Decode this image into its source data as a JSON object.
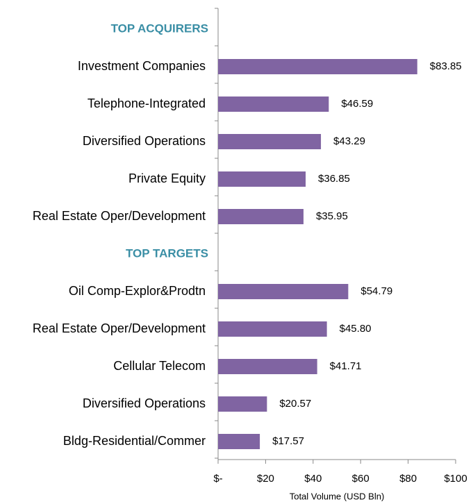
{
  "chart_data": {
    "type": "bar",
    "orientation": "horizontal",
    "color": "#8064a2",
    "x_label": "Total Volume (USD Bln)",
    "groups": [
      {
        "name": "TOP ACQUIRERS",
        "categories": [
          "Investment Companies",
          "Telephone-Integrated",
          "Diversified Operations",
          "Private Equity",
          "Real Estate Oper/Development"
        ],
        "values": [
          83.85,
          46.59,
          43.29,
          36.85,
          35.95
        ],
        "value_labels": [
          "$83.85",
          "$46.59",
          "$43.29",
          "$36.85",
          "$35.95"
        ]
      },
      {
        "name": "TOP TARGETS",
        "categories": [
          "Oil Comp-Explor&Prodtn",
          "Real Estate Oper/Development",
          "Cellular Telecom",
          "Diversified Operations",
          "Bldg-Residential/Commer"
        ],
        "values": [
          54.79,
          45.8,
          41.71,
          20.57,
          17.57
        ],
        "value_labels": [
          "$54.79",
          "$45.80",
          "$41.71",
          "$20.57",
          "$17.57"
        ]
      }
    ],
    "xlim": [
      0,
      100
    ],
    "xticks": [
      {
        "value": 0,
        "label": "$-"
      },
      {
        "value": 20,
        "label": "$20"
      },
      {
        "value": 40,
        "label": "$40"
      },
      {
        "value": 60,
        "label": "$60"
      },
      {
        "value": 80,
        "label": "$80"
      },
      {
        "value": 100,
        "label": "$100"
      }
    ]
  }
}
